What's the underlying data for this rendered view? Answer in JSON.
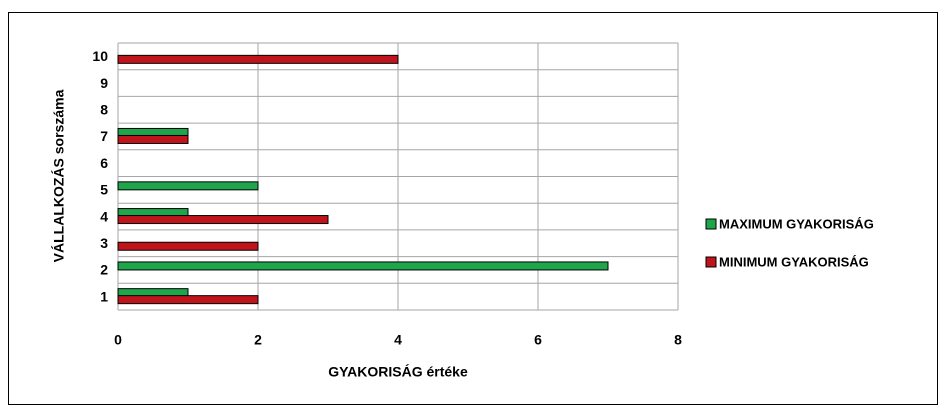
{
  "chart_data": {
    "type": "bar",
    "orientation": "horizontal",
    "x_label": "GYAKORISÁG értéke",
    "y_label": "VÁLLALKOZÁS sorszáma",
    "categories": [
      "1",
      "2",
      "3",
      "4",
      "5",
      "6",
      "7",
      "8",
      "9",
      "10"
    ],
    "series": [
      {
        "name": "MAXIMUM GYAKORISÁG",
        "color": "#1fa64a",
        "values": [
          1,
          7,
          0,
          1,
          2,
          0,
          1,
          0,
          0,
          0
        ]
      },
      {
        "name": "MINIMUM GYAKORISÁG",
        "color": "#c0141c",
        "values": [
          2,
          0,
          2,
          3,
          0,
          0,
          1,
          0,
          0,
          4
        ]
      }
    ],
    "xlim": [
      0,
      8
    ],
    "xticks": [
      0,
      2,
      4,
      6,
      8
    ],
    "grid": true,
    "legend": "right"
  }
}
